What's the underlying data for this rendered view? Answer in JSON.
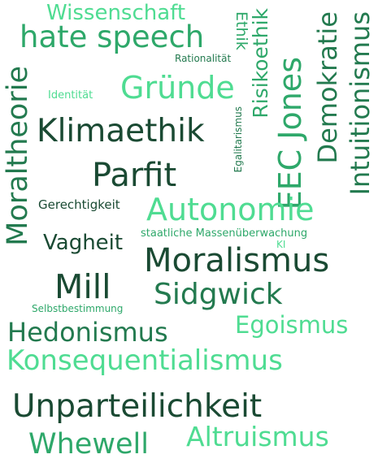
{
  "colors": {
    "dark": "#1a4a33",
    "mid": "#237a4f",
    "green": "#2ea86a",
    "light": "#4fdc92"
  },
  "words": [
    {
      "text": "Wissenschaft",
      "color": "light"
    },
    {
      "text": "hate speech",
      "color": "green"
    },
    {
      "text": "Rationalität",
      "color": "mid"
    },
    {
      "text": "Ethik",
      "color": "green"
    },
    {
      "text": "Risikoethik",
      "color": "green"
    },
    {
      "text": "Demokratie",
      "color": "mid"
    },
    {
      "text": "Intuitionismus",
      "color": "mid"
    },
    {
      "text": "Moraltheorie",
      "color": "mid"
    },
    {
      "text": "Identität",
      "color": "light"
    },
    {
      "text": "Gründe",
      "color": "light"
    },
    {
      "text": "Egalitarismus",
      "color": "mid"
    },
    {
      "text": "EEC Jones",
      "color": "green"
    },
    {
      "text": "Klimaethik",
      "color": "dark"
    },
    {
      "text": "Parfit",
      "color": "dark"
    },
    {
      "text": "Gerechtigkeit",
      "color": "dark"
    },
    {
      "text": "Autonomie",
      "color": "light"
    },
    {
      "text": "Vagheit",
      "color": "dark"
    },
    {
      "text": "staatliche Massenüberwachung",
      "color": "green"
    },
    {
      "text": "KI",
      "color": "light"
    },
    {
      "text": "Moralismus",
      "color": "dark"
    },
    {
      "text": "Mill",
      "color": "dark"
    },
    {
      "text": "Sidgwick",
      "color": "mid"
    },
    {
      "text": "Selbstbestimmung",
      "color": "green"
    },
    {
      "text": "Hedonismus",
      "color": "mid"
    },
    {
      "text": "Egoismus",
      "color": "light"
    },
    {
      "text": "Konsequentialismus",
      "color": "light"
    },
    {
      "text": "Unparteilichkeit",
      "color": "dark"
    },
    {
      "text": "Whewell",
      "color": "green"
    },
    {
      "text": "Altruismus",
      "color": "light"
    }
  ]
}
